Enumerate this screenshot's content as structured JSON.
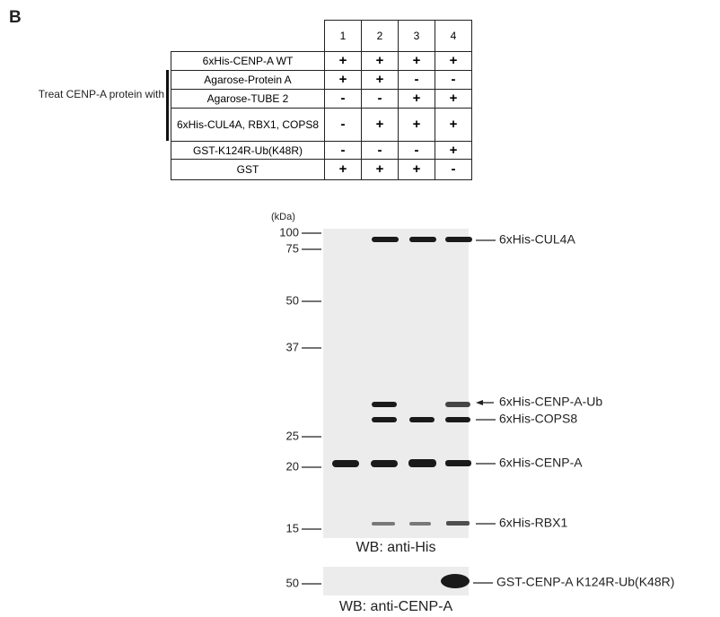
{
  "panel_label": "B",
  "table": {
    "header": [
      "1",
      "2",
      "3",
      "4"
    ],
    "group_label": "Treat CENP-A protein with",
    "rows": [
      {
        "label": "6xHis-CENP-A WT",
        "cells": [
          "+",
          "+",
          "+",
          "+"
        ]
      },
      {
        "label": "Agarose-Protein A",
        "cells": [
          "+",
          "+",
          "-",
          "-"
        ]
      },
      {
        "label": "Agarose-TUBE 2",
        "cells": [
          "-",
          "-",
          "+",
          "+"
        ]
      },
      {
        "label": "6xHis-CUL4A, RBX1, COPS8",
        "cells": [
          "-",
          "+",
          "+",
          "+"
        ]
      },
      {
        "label": "GST-K124R-Ub(K48R)",
        "cells": [
          "-",
          "-",
          "-",
          "+"
        ]
      },
      {
        "label": "GST",
        "cells": [
          "+",
          "+",
          "+",
          "-"
        ]
      }
    ]
  },
  "blot_top": {
    "unit_label": "(kDa)",
    "markers": [
      100,
      75,
      50,
      37,
      25,
      20,
      15
    ],
    "band_labels": [
      "6xHis-CUL4A",
      "6xHis-CENP-A-Ub",
      "6xHis-COPS8",
      "6xHis-CENP-A",
      "6xHis-RBX1"
    ],
    "caption": "WB: anti-His"
  },
  "blot_bottom": {
    "markers": [
      50
    ],
    "band_labels": [
      "GST-CENP-A K124R-Ub(K48R)"
    ],
    "caption": "WB: anti-CENP-A"
  }
}
